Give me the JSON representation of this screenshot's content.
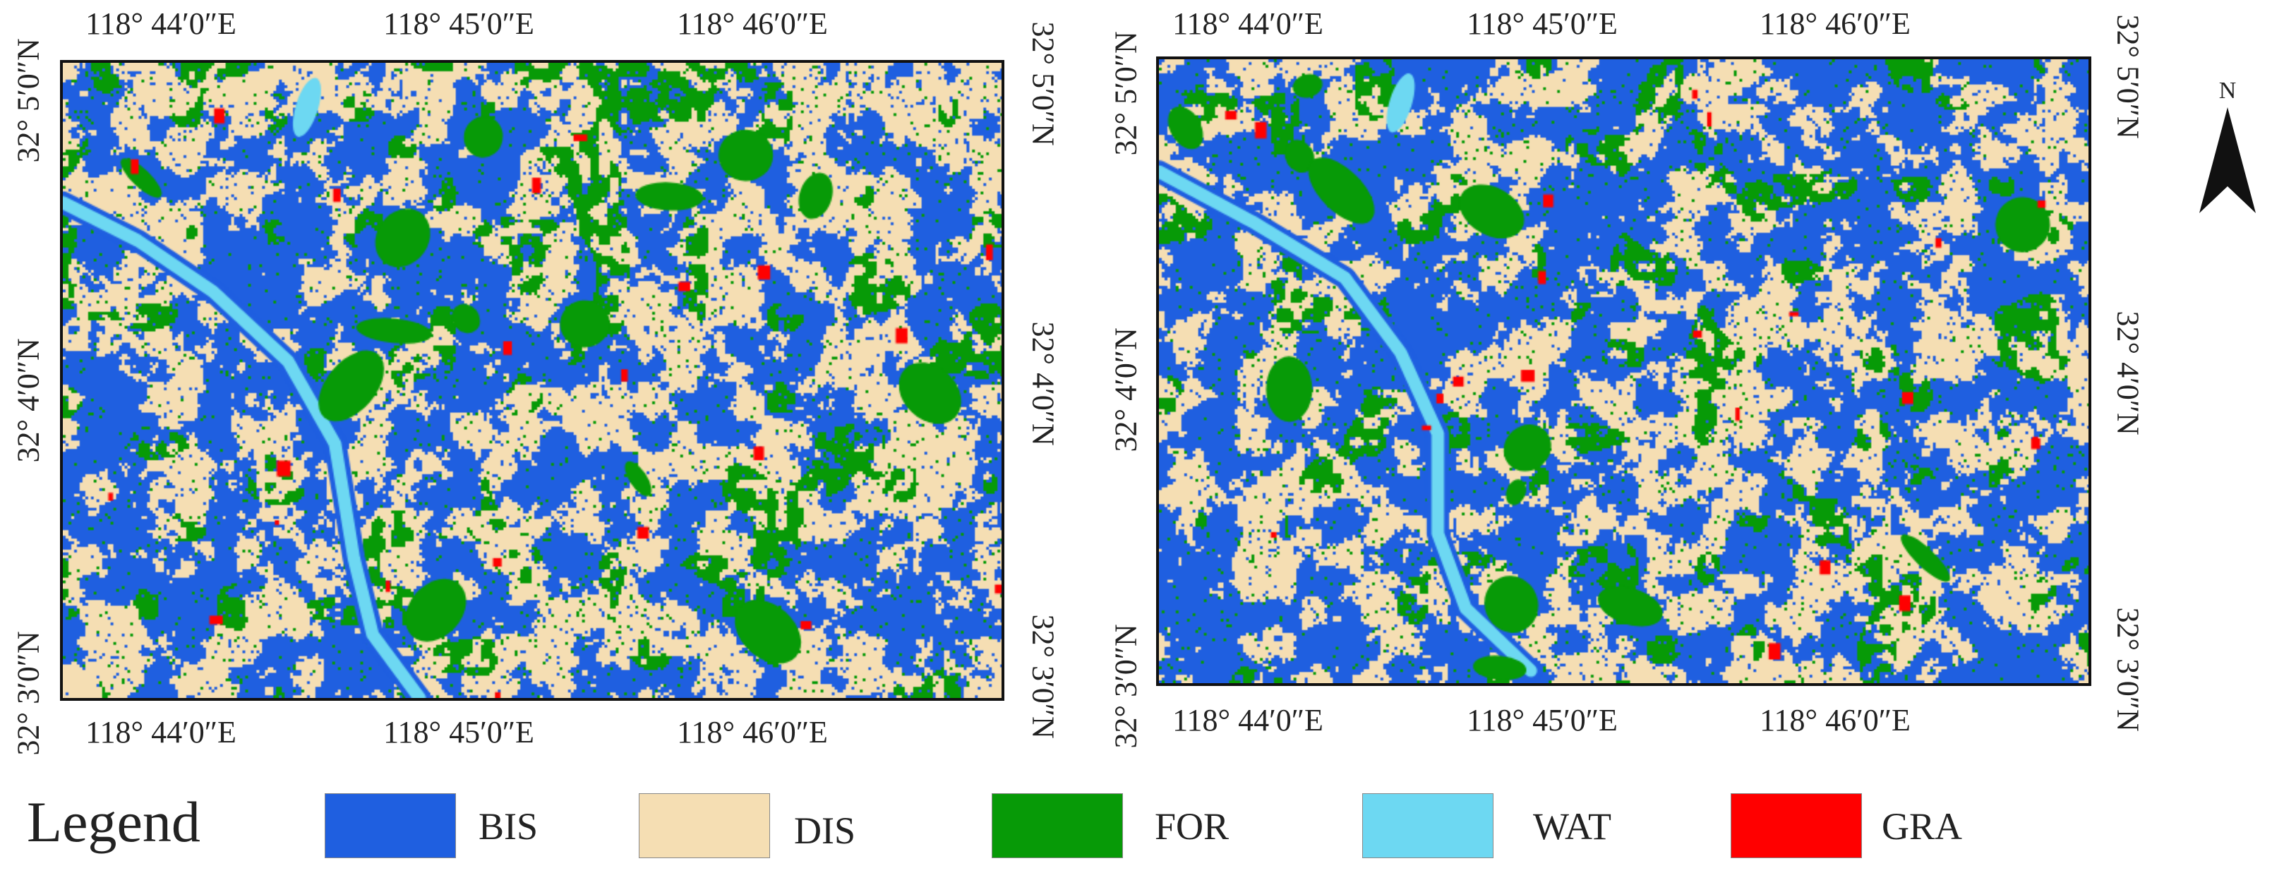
{
  "maps": [
    {
      "id": "left",
      "lon_labels": [
        "118° 44′0″E",
        "118° 45′0″E",
        "118° 46′0″E"
      ],
      "lat_labels": [
        "32° 5′0″N",
        "32° 4′0″N",
        "32° 3′0″N"
      ]
    },
    {
      "id": "right",
      "lon_labels": [
        "118° 44′0″E",
        "118° 45′0″E",
        "118° 46′0″E"
      ],
      "lat_labels": [
        "32° 5′0″N",
        "32° 4′0″N",
        "32° 3′0″N"
      ]
    }
  ],
  "north_arrow": {
    "label": "N",
    "icon": "north-arrow-icon"
  },
  "legend": {
    "title": "Legend",
    "items": [
      {
        "label": "BIS",
        "color": "#1f5fe0"
      },
      {
        "label": "DIS",
        "color": "#f5deb3"
      },
      {
        "label": "FOR",
        "color": "#079a07"
      },
      {
        "label": "WAT",
        "color": "#6dd8f2"
      },
      {
        "label": "GRA",
        "color": "#ff0000"
      }
    ]
  }
}
